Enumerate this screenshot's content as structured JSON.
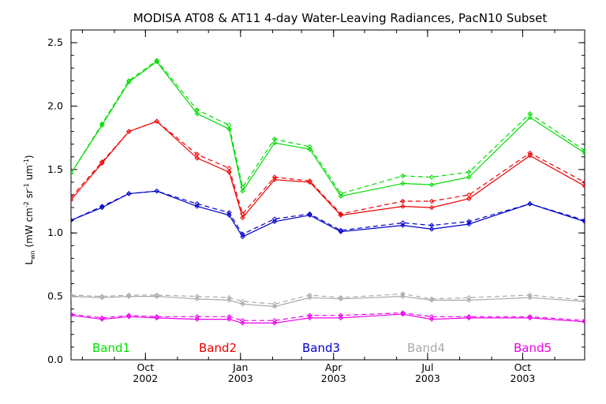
{
  "chart_data": {
    "type": "line",
    "title": "MODISA AT08 & AT11 4-day Water-Leaving Radiances, PacN10 Subset",
    "ylabel": {
      "main": "L",
      "sub": "wn",
      "units_pre": " (mW cm",
      "exp1": "-2",
      "mid1": " sr",
      "exp2": "-1",
      "mid2": " um",
      "exp3": "-1",
      "close": ")"
    },
    "ylim": [
      0.0,
      2.6
    ],
    "yticks": [
      {
        "value": 0.0,
        "label": "0.0"
      },
      {
        "value": 0.5,
        "label": "0.5"
      },
      {
        "value": 1.0,
        "label": "1.0"
      },
      {
        "value": 1.5,
        "label": "1.5"
      },
      {
        "value": 2.0,
        "label": "2.0"
      },
      {
        "value": 2.5,
        "label": "2.5"
      }
    ],
    "xlim": [
      "2002-07-21",
      "2003-11-30"
    ],
    "xticks": [
      {
        "date": "2002-10-01",
        "month": "Oct",
        "year": "2002"
      },
      {
        "date": "2003-01-01",
        "month": "Jan",
        "year": "2003"
      },
      {
        "date": "2003-04-01",
        "month": "Apr",
        "year": "2003"
      },
      {
        "date": "2003-07-01",
        "month": "Jul",
        "year": "2003"
      },
      {
        "date": "2003-10-01",
        "month": "Oct",
        "year": "2003"
      }
    ],
    "x": [
      "2002-07-21",
      "2002-08-20",
      "2002-09-15",
      "2002-10-12",
      "2002-11-20",
      "2002-12-21",
      "2003-01-03",
      "2003-02-03",
      "2003-03-09",
      "2003-04-08",
      "2003-06-07",
      "2003-07-05",
      "2003-08-10",
      "2003-10-08",
      "2003-11-30"
    ],
    "series": [
      {
        "name": "Band1",
        "color": "#00dd00",
        "solid": [
          1.47,
          1.85,
          2.19,
          2.35,
          1.94,
          1.82,
          1.33,
          1.71,
          1.66,
          1.29,
          1.39,
          1.38,
          1.44,
          1.91,
          1.63
        ],
        "dashed": [
          1.47,
          1.86,
          2.2,
          2.36,
          1.97,
          1.85,
          1.36,
          1.74,
          1.68,
          1.31,
          1.45,
          1.44,
          1.48,
          1.94,
          1.65
        ]
      },
      {
        "name": "Band2",
        "color": "#ee0000",
        "solid": [
          1.26,
          1.55,
          1.8,
          1.88,
          1.59,
          1.48,
          1.12,
          1.42,
          1.4,
          1.14,
          1.21,
          1.2,
          1.27,
          1.61,
          1.37
        ],
        "dashed": [
          1.28,
          1.56,
          1.8,
          1.88,
          1.62,
          1.51,
          1.15,
          1.44,
          1.41,
          1.15,
          1.25,
          1.25,
          1.3,
          1.63,
          1.4
        ]
      },
      {
        "name": "Band3",
        "color": "#0000cc",
        "solid": [
          1.1,
          1.2,
          1.31,
          1.33,
          1.21,
          1.14,
          0.97,
          1.09,
          1.14,
          1.01,
          1.06,
          1.03,
          1.07,
          1.23,
          1.09
        ],
        "dashed": [
          1.1,
          1.21,
          1.31,
          1.33,
          1.23,
          1.16,
          0.99,
          1.11,
          1.15,
          1.02,
          1.08,
          1.06,
          1.09,
          1.23,
          1.1
        ]
      },
      {
        "name": "Band4",
        "color": "#aaaaaa",
        "solid": [
          0.5,
          0.49,
          0.5,
          0.5,
          0.48,
          0.47,
          0.44,
          0.42,
          0.49,
          0.48,
          0.5,
          0.47,
          0.47,
          0.49,
          0.46
        ],
        "dashed": [
          0.51,
          0.5,
          0.51,
          0.51,
          0.5,
          0.49,
          0.46,
          0.44,
          0.51,
          0.49,
          0.52,
          0.48,
          0.49,
          0.51,
          0.47
        ]
      },
      {
        "name": "Band5",
        "color": "#ee00ee",
        "solid": [
          0.35,
          0.32,
          0.34,
          0.33,
          0.32,
          0.32,
          0.29,
          0.29,
          0.33,
          0.33,
          0.36,
          0.32,
          0.33,
          0.33,
          0.3
        ],
        "dashed": [
          0.36,
          0.33,
          0.35,
          0.34,
          0.34,
          0.34,
          0.31,
          0.31,
          0.35,
          0.35,
          0.37,
          0.34,
          0.34,
          0.34,
          0.31
        ]
      }
    ],
    "legend_position": "bottom inside plot",
    "grid": false
  }
}
